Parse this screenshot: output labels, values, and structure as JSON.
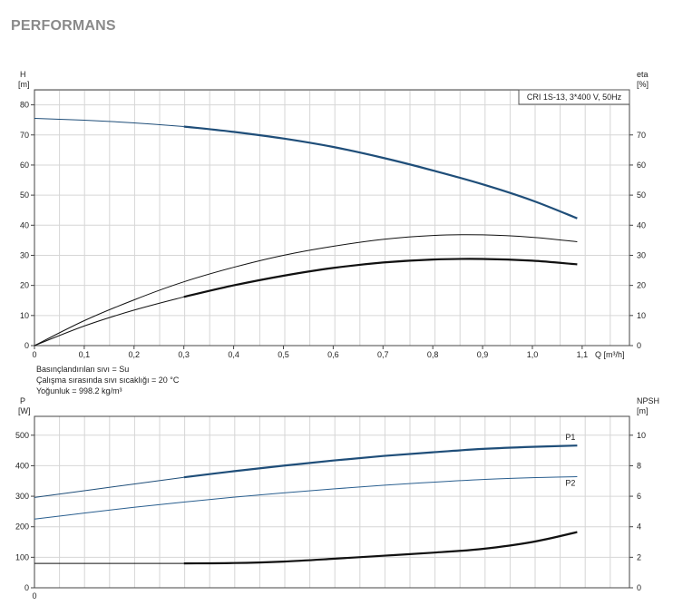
{
  "header": {
    "title": "PERFORMANS"
  },
  "chart_data": [
    {
      "type": "line",
      "title": "CRI 1S-13, 3*400 V, 50Hz",
      "xlabel": "Q [m³/h]",
      "ylabel_left": [
        "H",
        "[m]"
      ],
      "ylabel_right": [
        "eta",
        "[%]"
      ],
      "xlim": [
        0,
        1.1
      ],
      "ylim_left": [
        0,
        85
      ],
      "ylim_right": [
        0,
        85
      ],
      "x_ticks": [
        "0",
        "0,1",
        "0,2",
        "0,3",
        "0,4",
        "0,5",
        "0,6",
        "0,7",
        "0,8",
        "0,9",
        "1,0",
        "1,1"
      ],
      "y_ticks_left": [
        "0",
        "10",
        "20",
        "30",
        "40",
        "50",
        "60",
        "70",
        "80"
      ],
      "y_ticks_right": [
        "0",
        "10",
        "20",
        "30",
        "40",
        "50",
        "60",
        "70"
      ],
      "grid": true,
      "series": [
        {
          "role": "head",
          "axis": "left",
          "color": "#1f4e79",
          "thin_until": 0.3,
          "x": [
            0,
            0.1,
            0.2,
            0.3,
            0.4,
            0.5,
            0.6,
            0.7,
            0.8,
            0.9,
            1.0,
            1.09
          ],
          "y": [
            75.5,
            74.9,
            74.0,
            72.8,
            71.0,
            68.8,
            66.0,
            62.4,
            58.2,
            53.6,
            48.2,
            42.3
          ]
        },
        {
          "role": "efficiency-thin",
          "axis": "right",
          "color": "#111111",
          "x": [
            0,
            0.1,
            0.2,
            0.3,
            0.4,
            0.5,
            0.6,
            0.7,
            0.8,
            0.9,
            1.0,
            1.09
          ],
          "y": [
            0,
            8.3,
            15.2,
            21.2,
            26.0,
            30.0,
            33.0,
            35.3,
            36.6,
            36.8,
            36.0,
            34.5
          ]
        },
        {
          "role": "efficiency-thick",
          "axis": "right",
          "color": "#111111",
          "thin_until": 0.3,
          "x": [
            0,
            0.1,
            0.2,
            0.3,
            0.4,
            0.5,
            0.6,
            0.7,
            0.8,
            0.9,
            1.0,
            1.09
          ],
          "y": [
            0,
            6.5,
            11.8,
            16.2,
            20.0,
            23.2,
            25.8,
            27.6,
            28.6,
            28.8,
            28.2,
            27.0
          ]
        }
      ]
    },
    {
      "type": "line",
      "xlabel": "",
      "ylabel_left": [
        "P",
        "[W]"
      ],
      "ylabel_right": [
        "NPSH",
        "[m]"
      ],
      "xlim": [
        0,
        1.1
      ],
      "ylim_left": [
        0,
        500
      ],
      "ylim_right": [
        0,
        10
      ],
      "y_ticks_left": [
        "0",
        "100",
        "200",
        "300",
        "400",
        "500"
      ],
      "y_ticks_right": [
        "0",
        "2",
        "4",
        "6",
        "8",
        "10"
      ],
      "grid": true,
      "series": [
        {
          "name": "P1",
          "axis": "left",
          "color": "#1f4e79",
          "thin_until": 0.3,
          "x": [
            0,
            0.1,
            0.2,
            0.3,
            0.4,
            0.5,
            0.6,
            0.7,
            0.8,
            0.9,
            1.0,
            1.09
          ],
          "y": [
            296,
            318,
            340,
            362,
            382,
            400,
            417,
            432,
            444,
            455,
            462,
            466
          ]
        },
        {
          "name": "P2",
          "axis": "left",
          "color": "#2a5f8f",
          "x": [
            0,
            0.1,
            0.2,
            0.3,
            0.4,
            0.5,
            0.6,
            0.7,
            0.8,
            0.9,
            1.0,
            1.09
          ],
          "y": [
            225,
            245,
            264,
            281,
            297,
            311,
            324,
            336,
            346,
            355,
            361,
            364
          ]
        },
        {
          "role": "npsh",
          "axis": "right",
          "color": "#111111",
          "x": [
            0,
            0.1,
            0.2,
            0.3,
            0.4,
            0.5,
            0.6,
            0.7,
            0.8,
            0.9,
            1.0,
            1.09
          ],
          "y": [
            1.6,
            1.6,
            1.6,
            1.6,
            1.62,
            1.72,
            1.9,
            2.1,
            2.3,
            2.55,
            3.0,
            3.65
          ]
        }
      ]
    }
  ],
  "notes": [
    "Basınçlandırılan sıvı = Su",
    "Çalışma sırasında sıvı sıcaklığı = 20 °C",
    "Yoğunluk = 998.2 kg/m³"
  ]
}
